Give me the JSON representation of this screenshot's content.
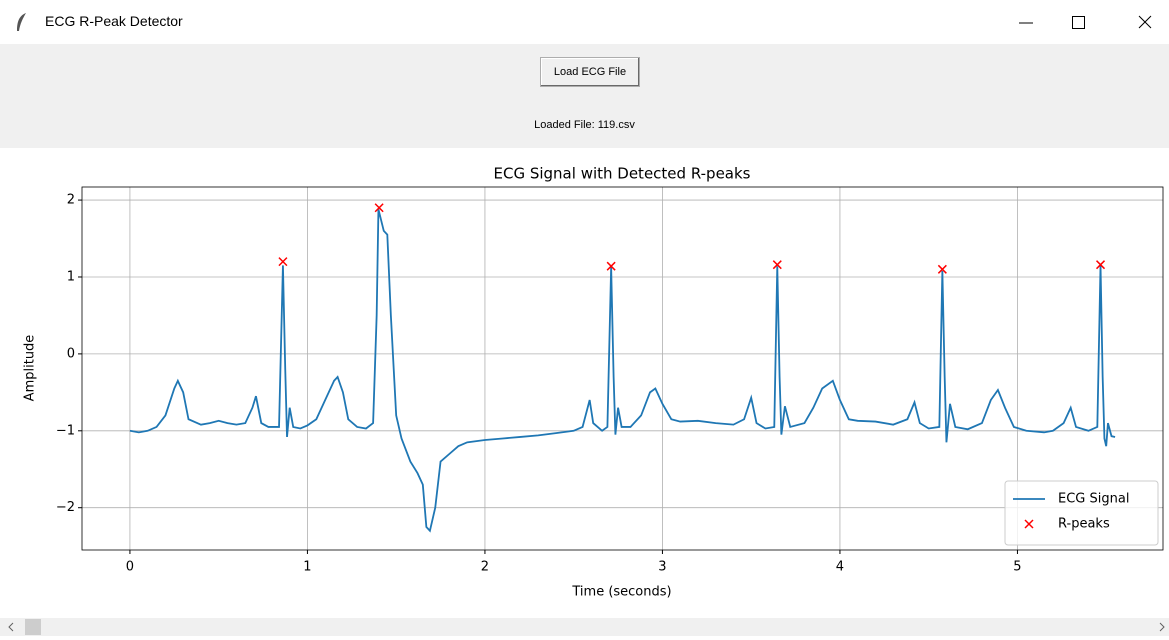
{
  "window": {
    "title": "ECG R-Peak Detector"
  },
  "controls": {
    "button": "Load ECG File",
    "status": "Loaded File: 119.csv"
  },
  "chart_data": {
    "type": "line",
    "title": "ECG Signal with Detected R-peaks",
    "xlabel": "Time (seconds)",
    "ylabel": "Amplitude",
    "xlim": [
      -0.27,
      5.82
    ],
    "ylim": [
      -2.55,
      2.17
    ],
    "xticks": [
      0,
      1,
      2,
      3,
      4,
      5
    ],
    "yticks": [
      {
        "value": -2,
        "label": "−2"
      },
      {
        "value": -1,
        "label": "−1"
      },
      0,
      1,
      2
    ],
    "grid": true,
    "legend": "lower right",
    "series": [
      {
        "name": "ECG Signal",
        "color": "#1f77b4",
        "type": "line",
        "x": [
          0,
          0.05,
          0.1,
          0.15,
          0.2,
          0.25,
          0.27,
          0.3,
          0.33,
          0.4,
          0.45,
          0.5,
          0.55,
          0.6,
          0.65,
          0.69,
          0.71,
          0.74,
          0.78,
          0.82,
          0.84,
          0.862,
          0.875,
          0.885,
          0.9,
          0.92,
          0.96,
          1.0,
          1.05,
          1.1,
          1.15,
          1.17,
          1.2,
          1.23,
          1.28,
          1.33,
          1.37,
          1.39,
          1.4,
          1.43,
          1.45,
          1.47,
          1.5,
          1.53,
          1.58,
          1.62,
          1.65,
          1.67,
          1.69,
          1.72,
          1.75,
          1.8,
          1.85,
          1.9,
          2.0,
          2.1,
          2.2,
          2.3,
          2.4,
          2.5,
          2.55,
          2.59,
          2.61,
          2.66,
          2.69,
          2.711,
          2.725,
          2.735,
          2.75,
          2.77,
          2.82,
          2.88,
          2.93,
          2.96,
          3.0,
          3.05,
          3.1,
          3.2,
          3.3,
          3.4,
          3.46,
          3.5,
          3.53,
          3.58,
          3.63,
          3.647,
          3.66,
          3.67,
          3.69,
          3.72,
          3.8,
          3.85,
          3.9,
          3.96,
          4.0,
          4.05,
          4.1,
          4.2,
          4.3,
          4.38,
          4.42,
          4.45,
          4.5,
          4.56,
          4.577,
          4.59,
          4.6,
          4.62,
          4.65,
          4.72,
          4.8,
          4.85,
          4.89,
          4.93,
          4.98,
          5.05,
          5.15,
          5.2,
          5.26,
          5.3,
          5.33,
          5.4,
          5.45,
          5.468,
          5.48,
          5.49,
          5.5,
          5.51,
          5.53,
          5.55
        ],
        "values": [
          -1.0,
          -1.02,
          -1.0,
          -0.95,
          -0.8,
          -0.45,
          -0.35,
          -0.5,
          -0.85,
          -0.92,
          -0.9,
          -0.87,
          -0.9,
          -0.92,
          -0.9,
          -0.7,
          -0.55,
          -0.9,
          -0.95,
          -0.95,
          -0.95,
          1.15,
          -0.2,
          -1.08,
          -0.7,
          -0.95,
          -0.97,
          -0.93,
          -0.85,
          -0.6,
          -0.35,
          -0.3,
          -0.5,
          -0.85,
          -0.95,
          -0.97,
          -0.9,
          0.5,
          1.88,
          1.6,
          1.55,
          0.5,
          -0.8,
          -1.1,
          -1.4,
          -1.55,
          -1.7,
          -2.25,
          -2.3,
          -2.0,
          -1.4,
          -1.3,
          -1.2,
          -1.15,
          -1.12,
          -1.1,
          -1.08,
          -1.06,
          -1.03,
          -1.0,
          -0.95,
          -0.6,
          -0.9,
          -1.0,
          -0.95,
          1.13,
          -0.3,
          -1.05,
          -0.7,
          -0.95,
          -0.95,
          -0.8,
          -0.5,
          -0.45,
          -0.65,
          -0.85,
          -0.88,
          -0.87,
          -0.9,
          -0.92,
          -0.85,
          -0.57,
          -0.9,
          -0.97,
          -0.95,
          1.14,
          -0.3,
          -1.05,
          -0.68,
          -0.95,
          -0.9,
          -0.7,
          -0.45,
          -0.35,
          -0.6,
          -0.85,
          -0.87,
          -0.88,
          -0.92,
          -0.85,
          -0.63,
          -0.9,
          -0.97,
          -0.95,
          1.08,
          -0.3,
          -1.15,
          -0.65,
          -0.95,
          -0.98,
          -0.9,
          -0.6,
          -0.47,
          -0.7,
          -0.95,
          -1.0,
          -1.02,
          -1.0,
          -0.9,
          -0.7,
          -0.95,
          -1.0,
          -0.95,
          1.15,
          -0.3,
          -1.1,
          -1.2,
          -0.9,
          -1.07,
          -1.08
        ]
      },
      {
        "name": "R-peaks",
        "color": "red",
        "type": "scatter",
        "x": [
          0.862,
          1.404,
          2.711,
          3.647,
          4.577,
          5.468
        ],
        "values": [
          1.2,
          1.9,
          1.14,
          1.16,
          1.1,
          1.16
        ]
      }
    ]
  }
}
